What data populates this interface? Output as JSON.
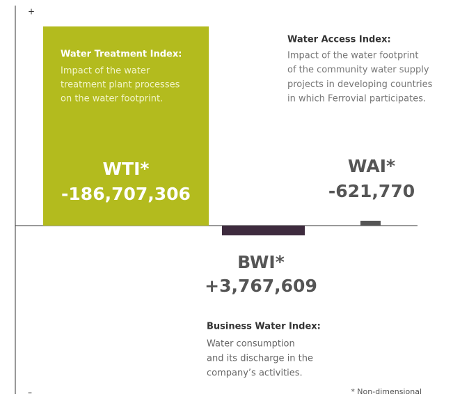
{
  "axis": {
    "top": "+",
    "bottom": "–"
  },
  "indices": [
    {
      "code": "WTI*",
      "value": "-186,707,306",
      "title": "Water Treatment Index:",
      "lines": [
        "Impact of the water",
        "treatment plant processes",
        "on the water footprint."
      ]
    },
    {
      "code": "BWI*",
      "value": "+3,767,609",
      "title": "Business Water Index:",
      "lines": [
        "Water consumption",
        "and its discharge in the",
        "company’s activities."
      ]
    },
    {
      "code": "WAI*",
      "value": "-621,770",
      "title": "Water Access Index:",
      "lines": [
        "Impact of the water footprint",
        "of the community water supply",
        "projects in developing countries",
        "in which Ferrovial participates."
      ]
    }
  ],
  "footnote": "* Non-dimensional"
}
